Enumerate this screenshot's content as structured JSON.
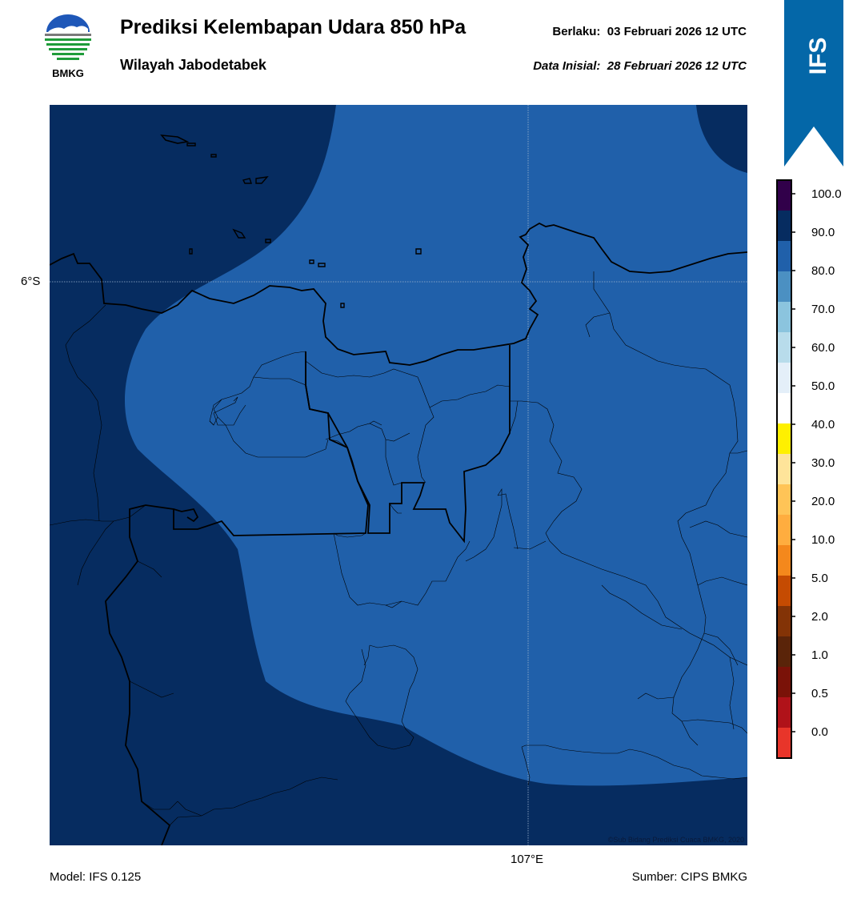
{
  "header": {
    "logo_text": "BMKG",
    "title": "Prediksi Kelembapan Udara 850 hPa",
    "subtitle": "Wilayah Jabodetabek",
    "valid_label": "Berlaku:",
    "valid_time": "03 Februari 2026 12 UTC",
    "init_label": "Data Inisial:",
    "init_time": "28 Februari 2026 12 UTC",
    "model_badge": "IFS"
  },
  "map": {
    "lat_label": "6°S",
    "lon_label": "107°E",
    "copyright": "©Sub Bidang Prediksi Cuaca BMKG, 2020",
    "colors": {
      "value_90_100": "#062c60",
      "value_80_90": "#2060aa"
    }
  },
  "colorbar": {
    "colors": [
      "#e8352a",
      "#b01219",
      "#7a1208",
      "#5a2409",
      "#833306",
      "#c54b02",
      "#f4881c",
      "#ffad3f",
      "#ffc457",
      "#fee49a",
      "#fff000",
      "#ffffff",
      "#e4eff9",
      "#b8dceb",
      "#8bc4de",
      "#4b90c2",
      "#2060aa",
      "#062c60",
      "#31004a"
    ],
    "labels": [
      "0.0",
      "0.5",
      "1.0",
      "2.0",
      "5.0",
      "10.0",
      "20.0",
      "30.0",
      "40.0",
      "50.0",
      "60.0",
      "70.0",
      "80.0",
      "90.0",
      "100.0"
    ]
  },
  "footer": {
    "model": "Model: IFS 0.125",
    "source": "Sumber: CIPS BMKG"
  }
}
